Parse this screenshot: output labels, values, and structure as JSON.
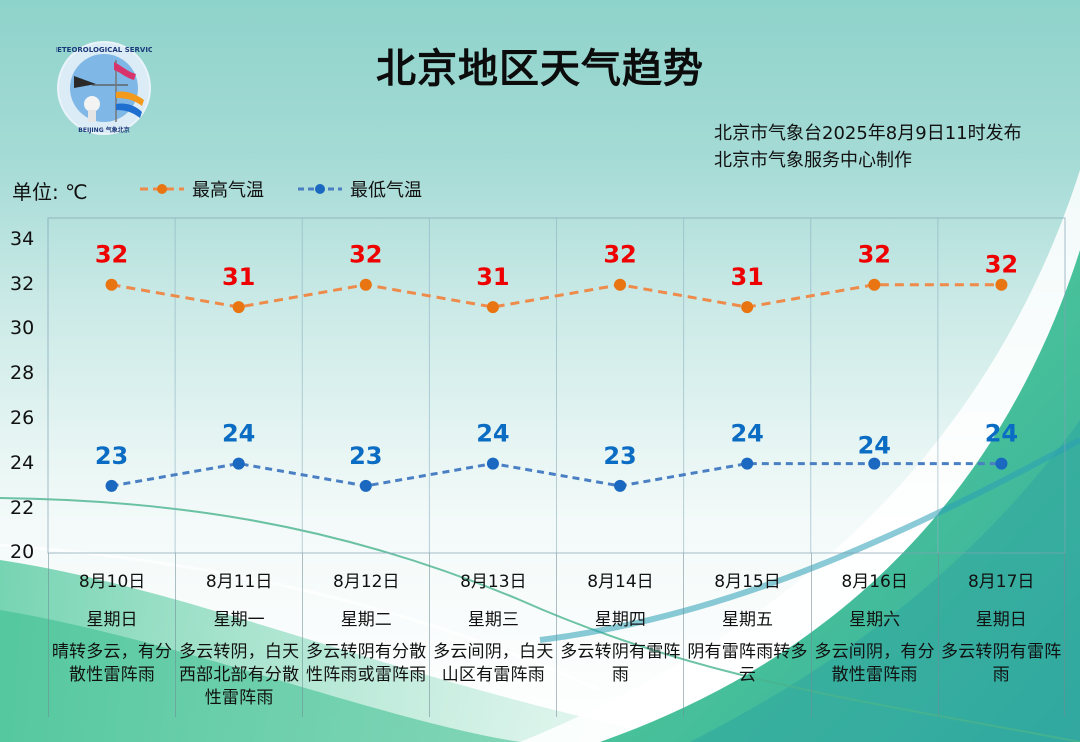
{
  "header": {
    "title": "北京地区天气趋势",
    "publisher_line1": "北京市气象台2025年8月9日11时发布",
    "publisher_line2": "北京市气象服务中心制作",
    "logo_text_top": "METEOROLOGICAL SERVICE",
    "logo_text_bottom": "BEIJING 气象北京"
  },
  "unit_label": "单位: ℃",
  "legend": {
    "high_label": "最高气温",
    "low_label": "最低气温",
    "high_line_color": "#ee8a4a",
    "high_marker_color": "#e87511",
    "high_label_color": "#ee0000",
    "low_line_color": "#4a7fc4",
    "low_marker_color": "#1a68c0",
    "low_label_color": "#0a6cc2"
  },
  "y_ticks": [
    "34",
    "32",
    "30",
    "28",
    "26",
    "24",
    "22",
    "20"
  ],
  "days": [
    {
      "date": "8月10日",
      "weekday": "星期日",
      "desc": "晴转多云，有分散性雷阵雨",
      "high": "32",
      "low": "23"
    },
    {
      "date": "8月11日",
      "weekday": "星期一",
      "desc": "多云转阴，白天西部北部有分散性雷阵雨",
      "high": "31",
      "low": "24"
    },
    {
      "date": "8月12日",
      "weekday": "星期二",
      "desc": "多云转阴有分散性阵雨或雷阵雨",
      "high": "32",
      "low": "23"
    },
    {
      "date": "8月13日",
      "weekday": "星期三",
      "desc": "多云间阴，白天山区有雷阵雨",
      "high": "31",
      "low": "24"
    },
    {
      "date": "8月14日",
      "weekday": "星期四",
      "desc": "多云转阴有雷阵雨",
      "high": "32",
      "low": "23"
    },
    {
      "date": "8月15日",
      "weekday": "星期五",
      "desc": "阴有雷阵雨转多云",
      "high": "31",
      "low": "24"
    },
    {
      "date": "8月16日",
      "weekday": "星期六",
      "desc": "多云间阴，有分散性雷阵雨",
      "high": "32",
      "low": "24"
    },
    {
      "date": "8月17日",
      "weekday": "星期日",
      "desc": "多云转阴有雷阵雨",
      "high": "32",
      "low": "24"
    }
  ],
  "chart_data": {
    "type": "line",
    "title": "北京地区天气趋势",
    "categories": [
      "8月10日",
      "8月11日",
      "8月12日",
      "8月13日",
      "8月14日",
      "8月15日",
      "8月16日",
      "8月17日"
    ],
    "weekdays": [
      "星期日",
      "星期一",
      "星期二",
      "星期三",
      "星期四",
      "星期五",
      "星期六",
      "星期日"
    ],
    "series": [
      {
        "name": "最高气温",
        "values": [
          32,
          31,
          32,
          31,
          32,
          31,
          32,
          32
        ],
        "color": "#e87511",
        "line_style": "dashed"
      },
      {
        "name": "最低气温",
        "values": [
          23,
          24,
          23,
          24,
          23,
          24,
          24,
          24
        ],
        "color": "#1a68c0",
        "line_style": "dashed"
      }
    ],
    "xlabel": "",
    "ylabel": "单位: ℃",
    "ylim": [
      20,
      34
    ],
    "yticks": [
      20,
      22,
      24,
      26,
      28,
      30,
      32,
      34
    ],
    "grid": "vertical lines per category",
    "legend_position": "top-left",
    "data_labels": true,
    "annotations": [
      "北京市气象台2025年8月9日11时发布",
      "北京市气象服务中心制作"
    ]
  }
}
